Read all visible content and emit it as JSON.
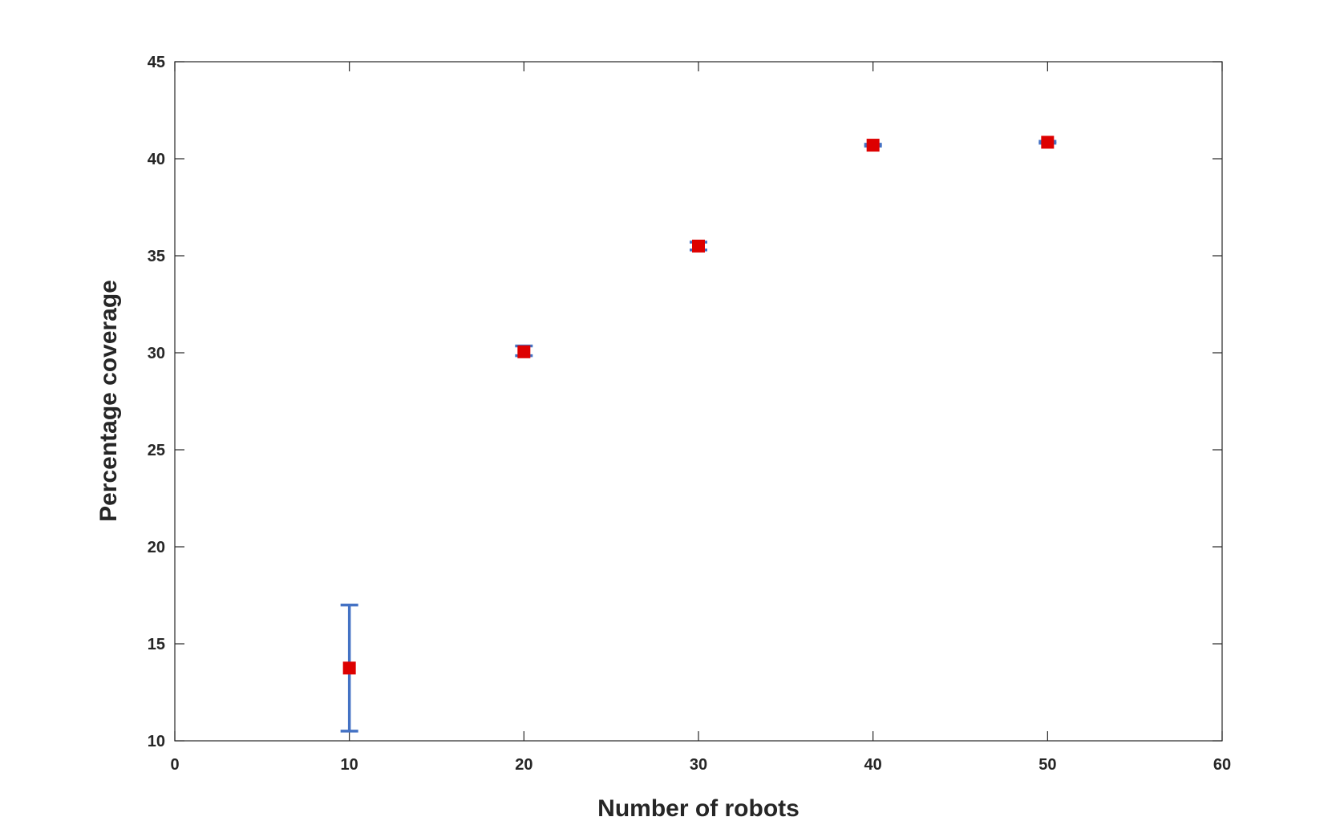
{
  "chart_data": {
    "type": "scatter",
    "title": "",
    "xlabel": "Number of robots",
    "ylabel": "Percentage coverage",
    "xlim": [
      0,
      60
    ],
    "ylim": [
      10,
      45
    ],
    "xticks": [
      0,
      10,
      20,
      30,
      40,
      50,
      60
    ],
    "yticks": [
      10,
      15,
      20,
      25,
      30,
      35,
      40,
      45
    ],
    "grid": false,
    "legend": "none",
    "marker_color": "#dd0000",
    "errorbar_color": "#4472c4",
    "series": [
      {
        "x": [
          10,
          20,
          30,
          40,
          50
        ],
        "y": [
          13.75,
          30.05,
          35.5,
          40.7,
          40.85
        ],
        "err_low": [
          10.5,
          29.85,
          35.3,
          40.65,
          40.8
        ],
        "err_high": [
          17.0,
          30.35,
          35.7,
          40.75,
          40.9
        ]
      }
    ]
  }
}
